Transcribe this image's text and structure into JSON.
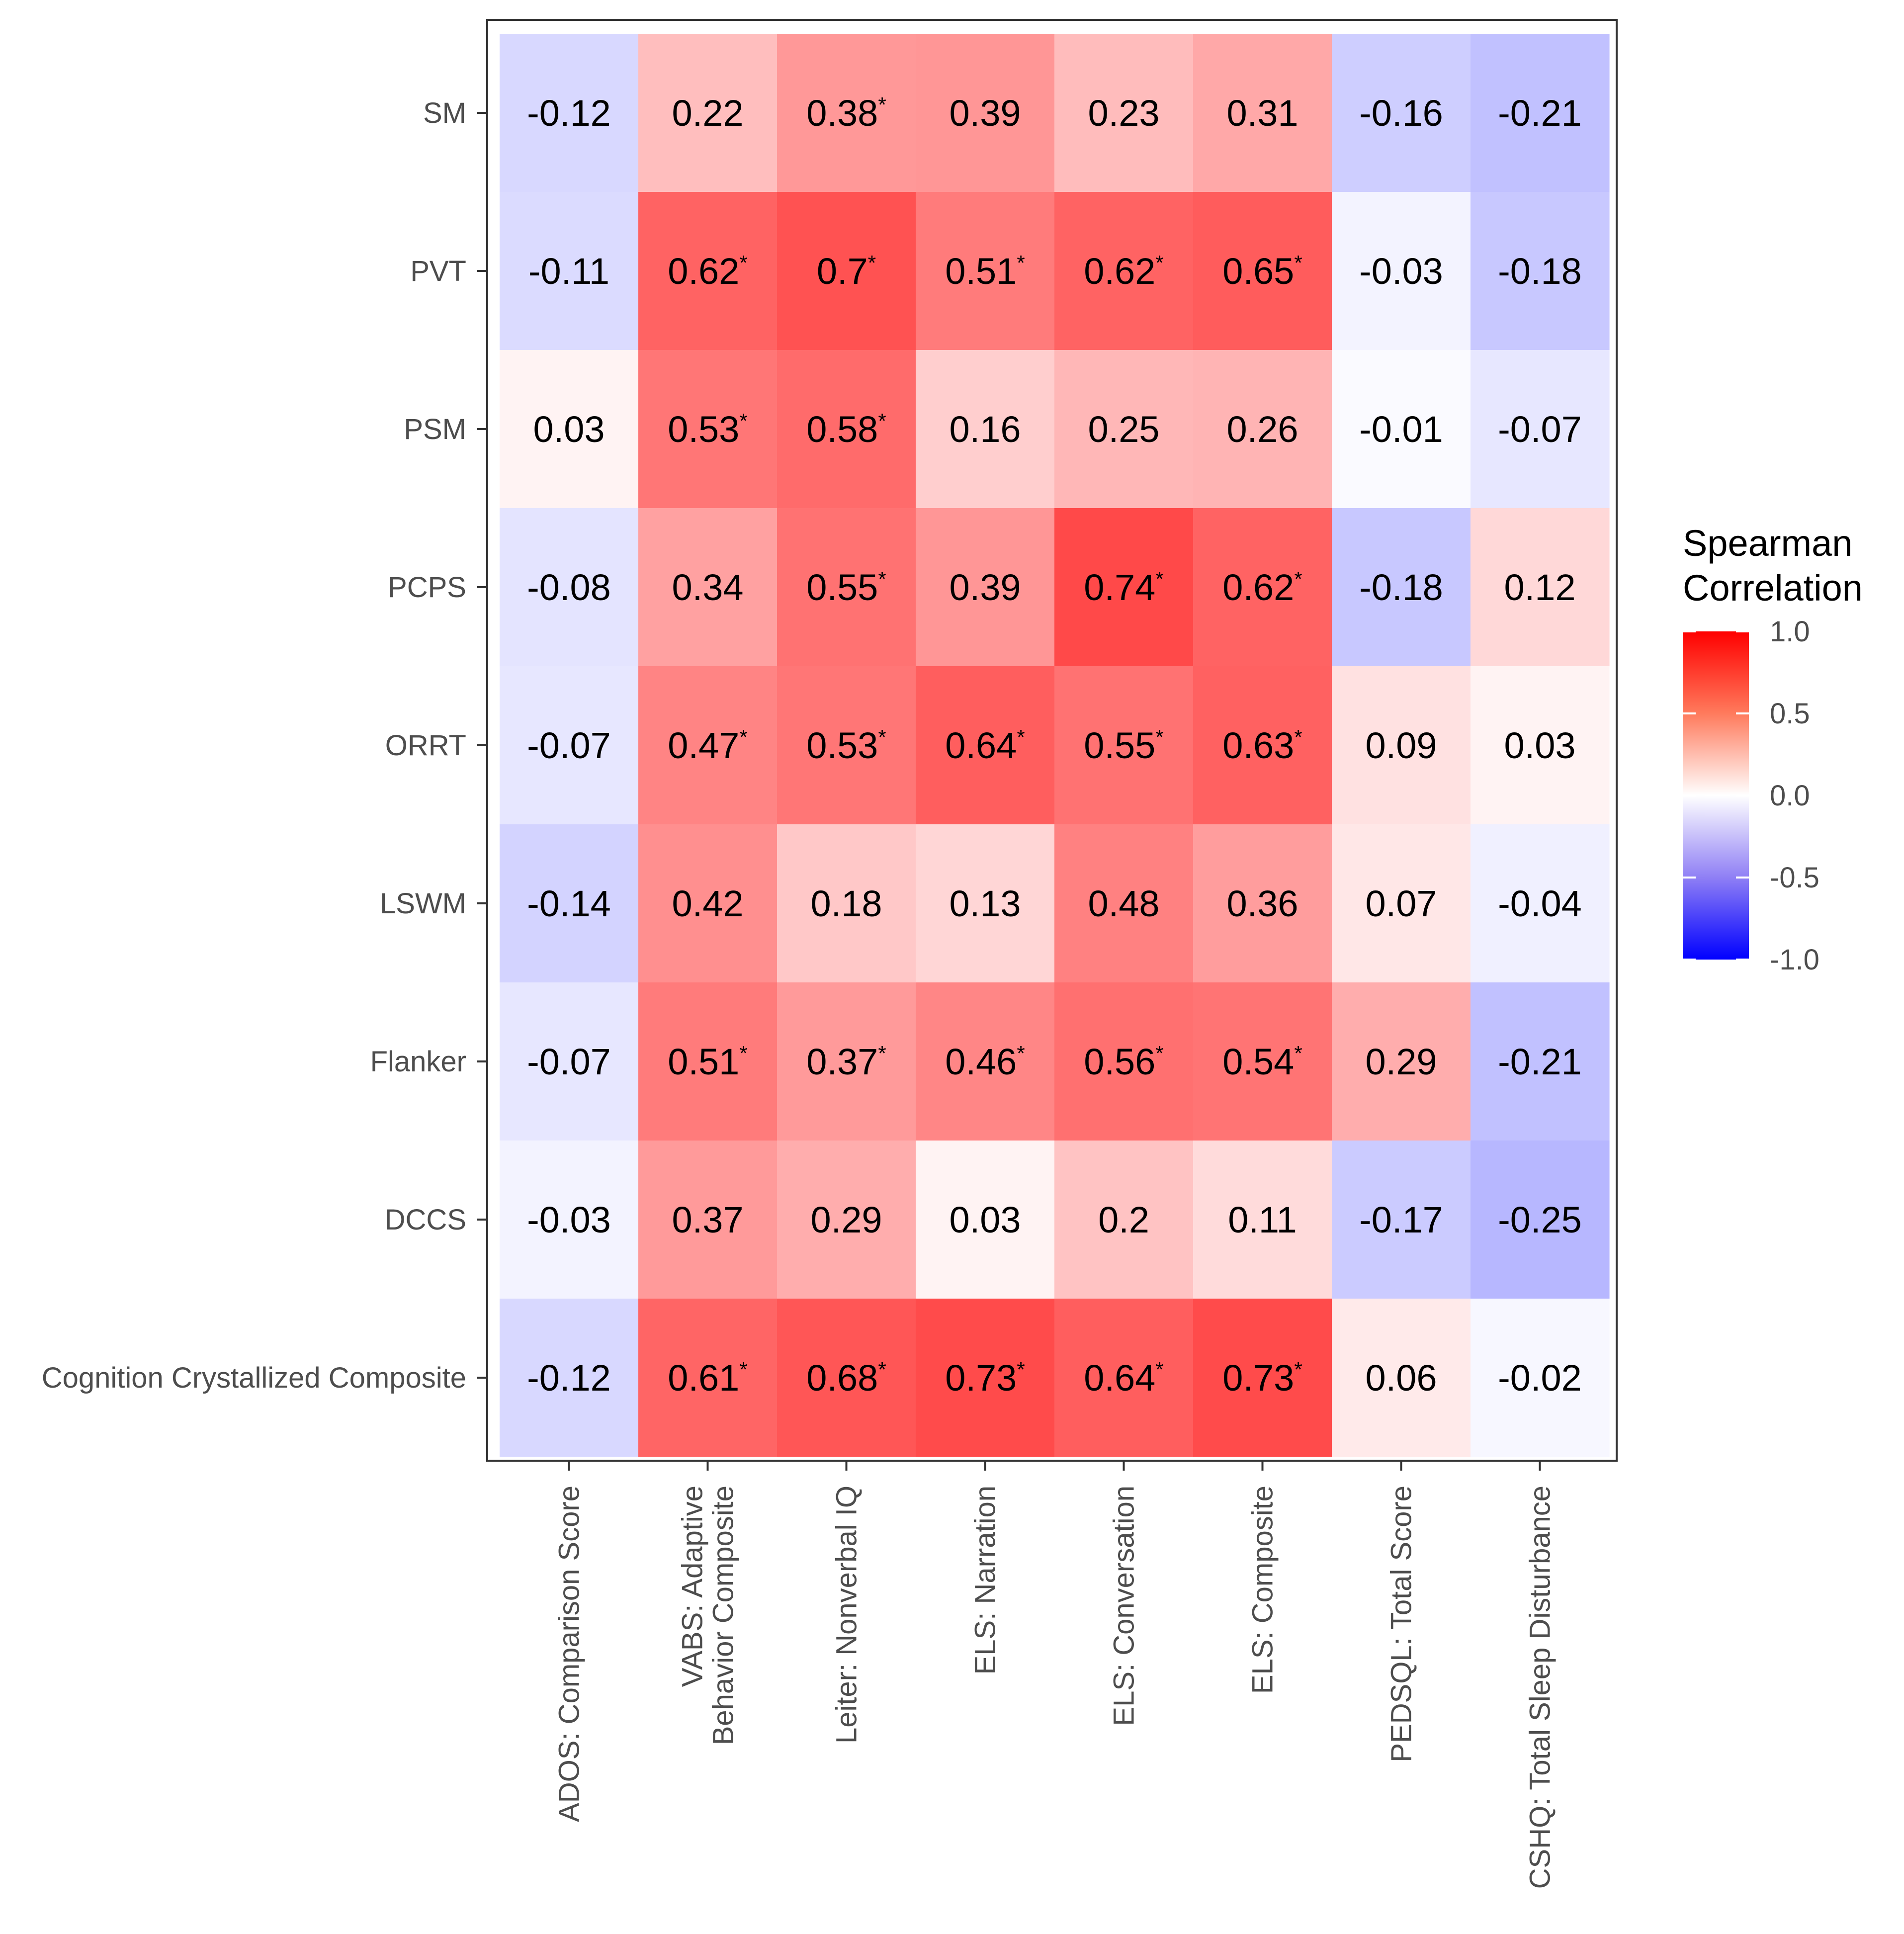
{
  "chart_data": {
    "type": "heatmap",
    "title": "",
    "xlabel": "",
    "ylabel": "",
    "rows": [
      "SM",
      "PVT",
      "PSM",
      "PCPS",
      "ORRT",
      "LSWM",
      "Flanker",
      "DCCS",
      "Cognition Crystallized Composite"
    ],
    "columns": [
      {
        "lines": [
          "ADOS: Comparison Score"
        ]
      },
      {
        "lines": [
          "VABS: Adaptive",
          "Behavior Composite"
        ]
      },
      {
        "lines": [
          "Leiter: Nonverbal IQ"
        ]
      },
      {
        "lines": [
          "ELS: Narration"
        ]
      },
      {
        "lines": [
          "ELS: Conversation"
        ]
      },
      {
        "lines": [
          "ELS: Composite"
        ]
      },
      {
        "lines": [
          "PEDSQL: Total Score"
        ]
      },
      {
        "lines": [
          "CSHQ: Total Sleep Disturbance"
        ]
      }
    ],
    "values": [
      [
        -0.12,
        0.22,
        0.38,
        0.39,
        0.23,
        0.31,
        -0.16,
        -0.21
      ],
      [
        -0.11,
        0.62,
        0.7,
        0.51,
        0.62,
        0.65,
        -0.03,
        -0.18
      ],
      [
        0.03,
        0.53,
        0.58,
        0.16,
        0.25,
        0.26,
        -0.01,
        -0.07
      ],
      [
        -0.08,
        0.34,
        0.55,
        0.39,
        0.74,
        0.62,
        -0.18,
        0.12
      ],
      [
        -0.07,
        0.47,
        0.53,
        0.64,
        0.55,
        0.63,
        0.09,
        0.03
      ],
      [
        -0.14,
        0.42,
        0.18,
        0.13,
        0.48,
        0.36,
        0.07,
        -0.04
      ],
      [
        -0.07,
        0.51,
        0.37,
        0.46,
        0.56,
        0.54,
        0.29,
        -0.21
      ],
      [
        -0.03,
        0.37,
        0.29,
        0.03,
        0.2,
        0.11,
        -0.17,
        -0.25
      ],
      [
        -0.12,
        0.61,
        0.68,
        0.73,
        0.64,
        0.73,
        0.06,
        -0.02
      ]
    ],
    "labels": [
      [
        "-0.12",
        "0.22",
        "0.38",
        "0.39",
        "0.23",
        "0.31",
        "-0.16",
        "-0.21"
      ],
      [
        "-0.11",
        "0.62",
        "0.7",
        "0.51",
        "0.62",
        "0.65",
        "-0.03",
        "-0.18"
      ],
      [
        "0.03",
        "0.53",
        "0.58",
        "0.16",
        "0.25",
        "0.26",
        "-0.01",
        "-0.07"
      ],
      [
        "-0.08",
        "0.34",
        "0.55",
        "0.39",
        "0.74",
        "0.62",
        "-0.18",
        "0.12"
      ],
      [
        "-0.07",
        "0.47",
        "0.53",
        "0.64",
        "0.55",
        "0.63",
        "0.09",
        "0.03"
      ],
      [
        "-0.14",
        "0.42",
        "0.18",
        "0.13",
        "0.48",
        "0.36",
        "0.07",
        "-0.04"
      ],
      [
        "-0.07",
        "0.51",
        "0.37",
        "0.46",
        "0.56",
        "0.54",
        "0.29",
        "-0.21"
      ],
      [
        "-0.03",
        "0.37",
        "0.29",
        "0.03",
        "0.2",
        "0.11",
        "-0.17",
        "-0.25"
      ],
      [
        "-0.12",
        "0.61",
        "0.68",
        "0.73",
        "0.64",
        "0.73",
        "0.06",
        "-0.02"
      ]
    ],
    "significant": [
      [
        false,
        false,
        true,
        false,
        false,
        false,
        false,
        false
      ],
      [
        false,
        true,
        true,
        true,
        true,
        true,
        false,
        false
      ],
      [
        false,
        true,
        true,
        false,
        false,
        false,
        false,
        false
      ],
      [
        false,
        false,
        true,
        false,
        true,
        true,
        false,
        false
      ],
      [
        false,
        true,
        true,
        true,
        true,
        true,
        false,
        false
      ],
      [
        false,
        false,
        false,
        false,
        false,
        false,
        false,
        false
      ],
      [
        false,
        true,
        true,
        true,
        true,
        true,
        false,
        false
      ],
      [
        false,
        false,
        false,
        false,
        false,
        false,
        false,
        false
      ],
      [
        false,
        true,
        true,
        true,
        true,
        true,
        false,
        false
      ]
    ],
    "significance_marker": "*",
    "legend": {
      "title_lines": [
        "Spearman",
        "Correlation"
      ],
      "ticks": [
        "1.0",
        "0.5",
        "0.0",
        "-0.5",
        "-1.0"
      ],
      "range": [
        -1,
        1
      ],
      "placement": "right"
    },
    "colors": {
      "low": "#0000ff",
      "mid": "#ffffff",
      "high": "#ff0000"
    }
  }
}
